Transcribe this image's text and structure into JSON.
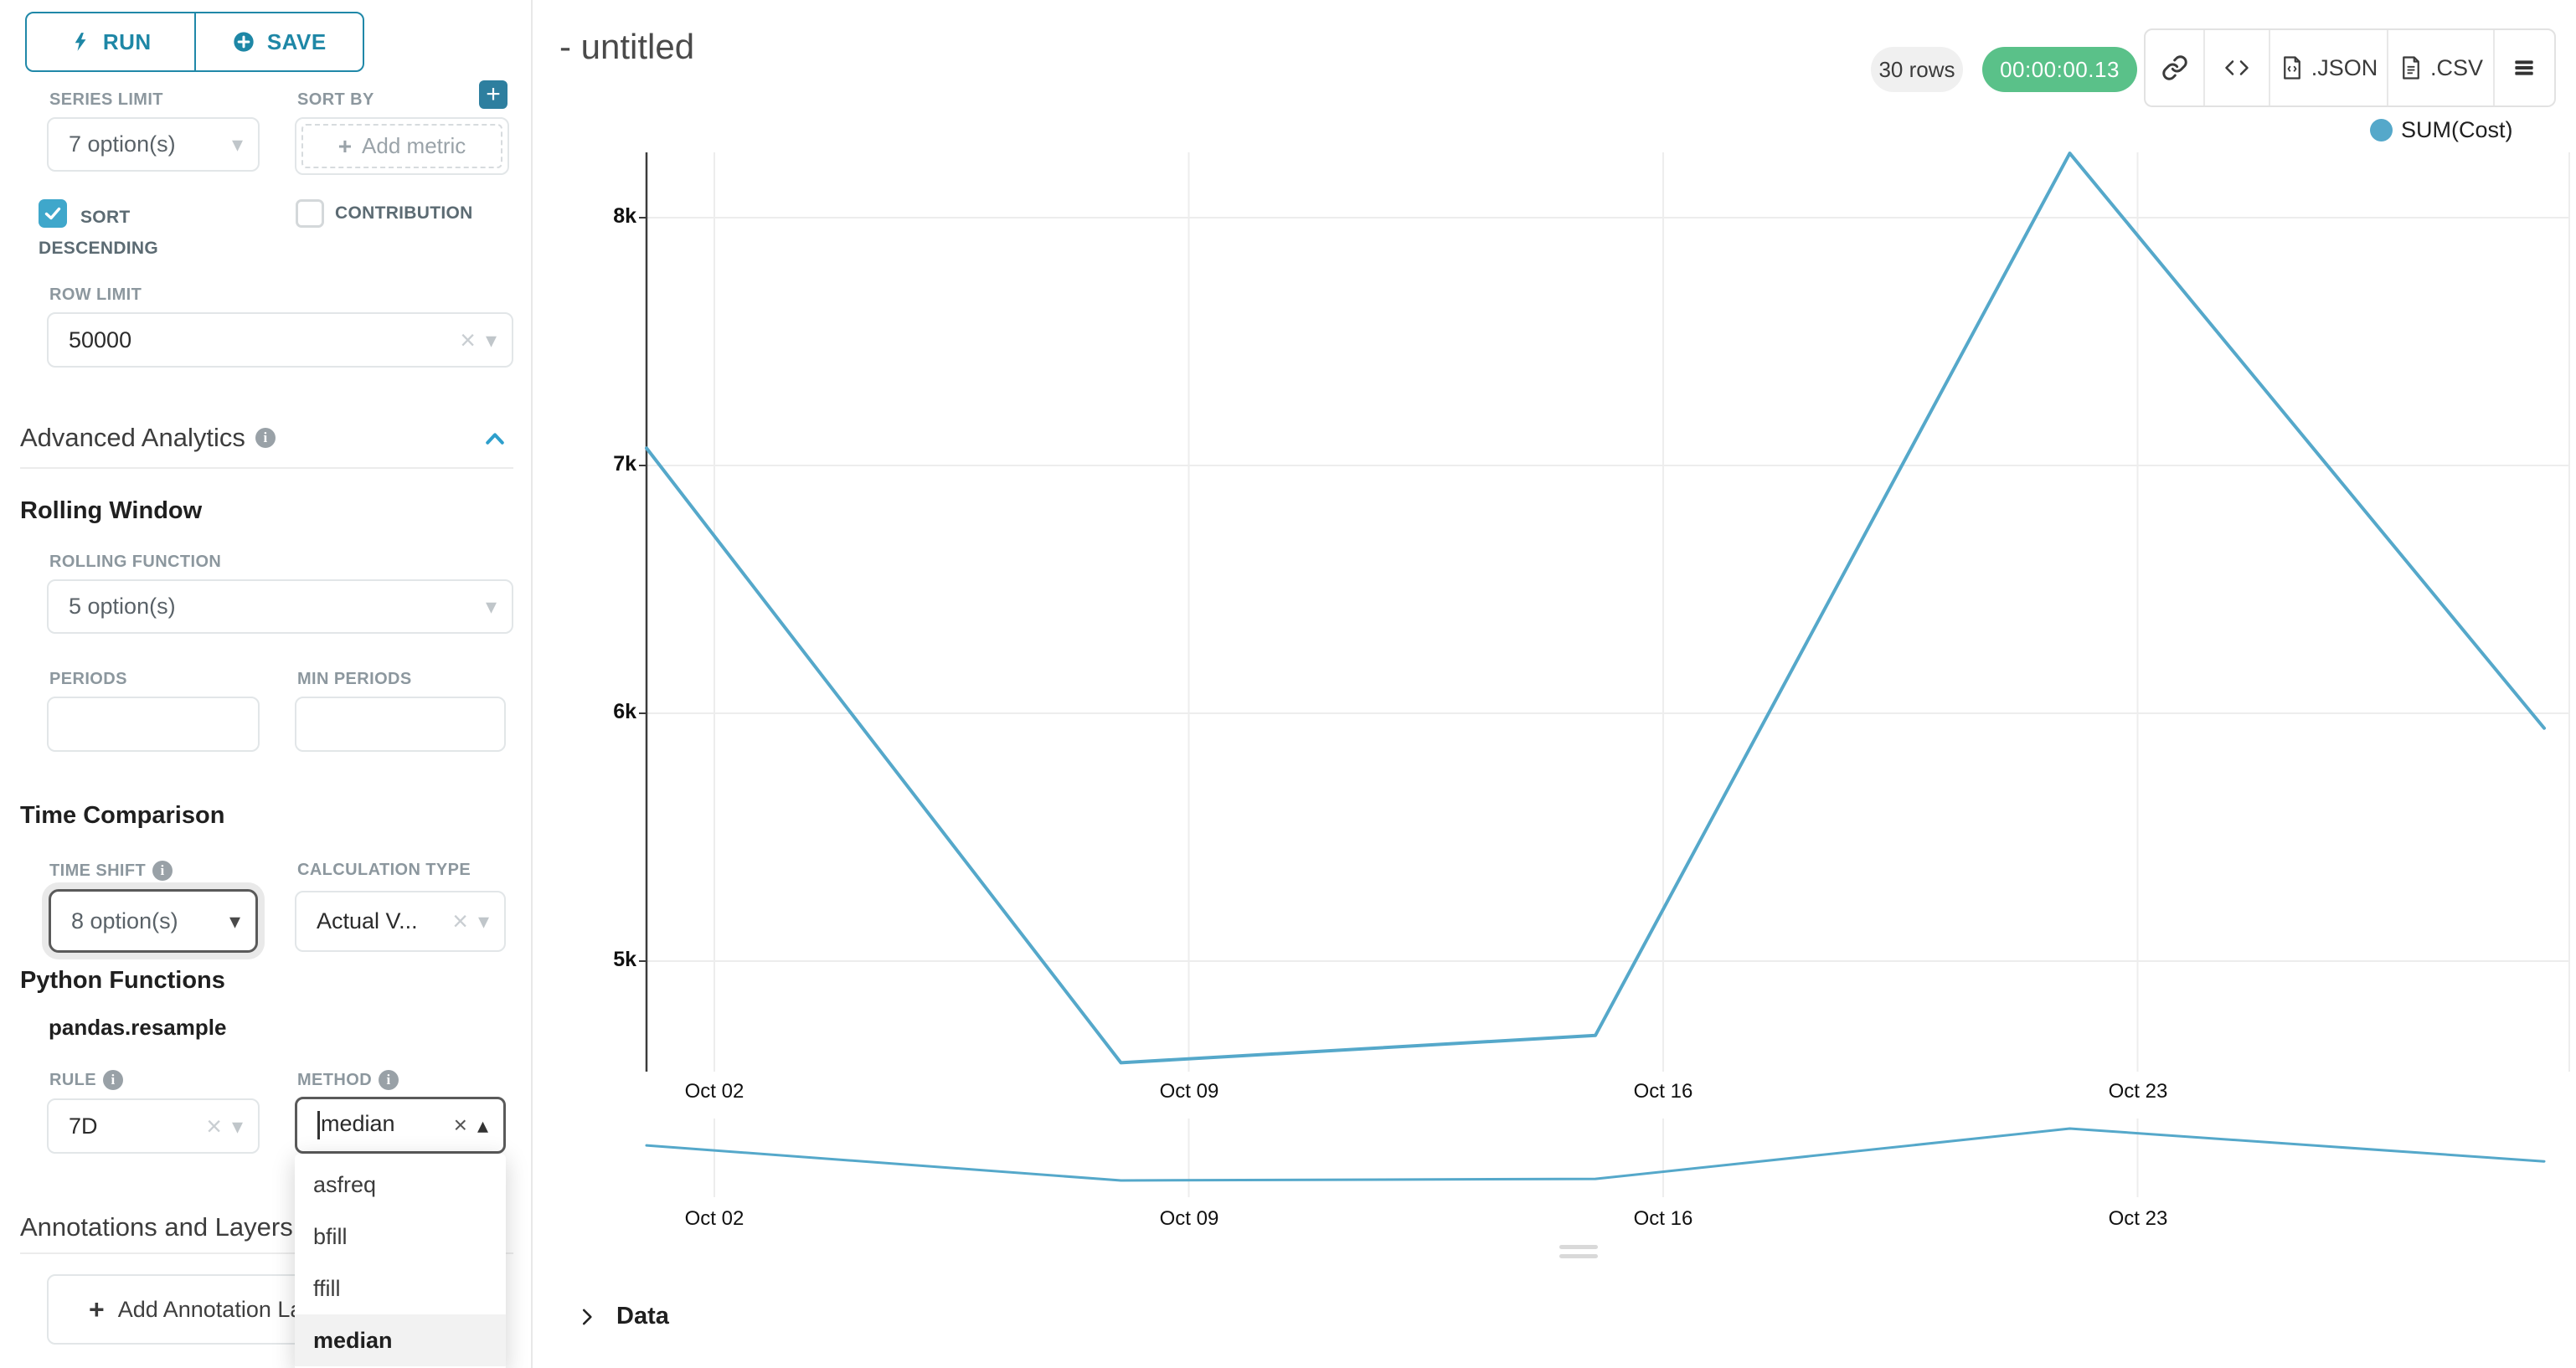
{
  "sidebar": {
    "run_label": "RUN",
    "save_label": "SAVE",
    "series_limit": {
      "label": "SERIES LIMIT",
      "value": "7 option(s)"
    },
    "sort_by": {
      "label": "SORT BY",
      "placeholder": "Add metric"
    },
    "sort_descending_label": "SORT DESCENDING",
    "contribution_label": "CONTRIBUTION",
    "row_limit": {
      "label": "ROW LIMIT",
      "value": "50000"
    },
    "advanced_analytics_title": "Advanced Analytics",
    "rolling_window": {
      "title": "Rolling Window",
      "rolling_function_label": "ROLLING FUNCTION",
      "rolling_function_value": "5 option(s)",
      "periods_label": "PERIODS",
      "min_periods_label": "MIN PERIODS"
    },
    "time_comparison": {
      "title": "Time Comparison",
      "time_shift_label": "TIME SHIFT",
      "time_shift_value": "8 option(s)",
      "calculation_type_label": "CALCULATION TYPE",
      "calculation_type_value": "Actual V..."
    },
    "python_functions": {
      "title": "Python Functions",
      "subtitle": "pandas.resample",
      "rule_label": "RULE",
      "rule_value": "7D",
      "method_label": "METHOD",
      "method_value": "median",
      "method_options": [
        "asfreq",
        "bfill",
        "ffill",
        "median"
      ],
      "method_selected": "median"
    },
    "annotations": {
      "title": "Annotations and Layers",
      "add_button_label": "Add Annotation Layer"
    }
  },
  "header": {
    "title": "- untitled",
    "rows_badge": "30 rows",
    "timer_badge": "00:00:00.13",
    "json_label": ".JSON",
    "csv_label": ".CSV"
  },
  "icons": {
    "run": "lightning-bolt",
    "save": "plus-circle",
    "share": "link-icon",
    "embed": "code-icon",
    "export": "file-icon",
    "more": "hamburger-menu-icon"
  },
  "colors": {
    "accent_teal": "#1e87a6",
    "plus_button_teal": "#2e7f9f",
    "checkbox_teal": "#3fa7cb",
    "chevron_blue": "#2e9fcc",
    "timer_green": "#5ac189",
    "rows_pill_gray": "#f0f0f0",
    "series_line": "#55a8ca"
  },
  "chart_data": {
    "type": "line",
    "title": "",
    "series": [
      {
        "name": "SUM(Cost)",
        "x": [
          "Oct 01",
          "Oct 08",
          "Oct 15",
          "Oct 22",
          "Oct 29"
        ],
        "values": [
          7070,
          4590,
          4700,
          8260,
          5940
        ]
      }
    ],
    "x_ticks": [
      "Oct 02",
      "Oct 09",
      "Oct 16",
      "Oct 23"
    ],
    "y_ticks": [
      "8k",
      "7k",
      "6k",
      "5k"
    ],
    "y_tick_values": [
      8000,
      7000,
      6000,
      5000
    ],
    "ylim": [
      4450,
      8350
    ],
    "grid": true,
    "legend": "SUM(Cost)",
    "legend_position": "top-right",
    "line_color": "#55a8ca",
    "has_mini_preview": true,
    "mini_x_ticks": [
      "Oct 02",
      "Oct 09",
      "Oct 16",
      "Oct 23"
    ]
  },
  "data_panel": {
    "title": "Data"
  }
}
